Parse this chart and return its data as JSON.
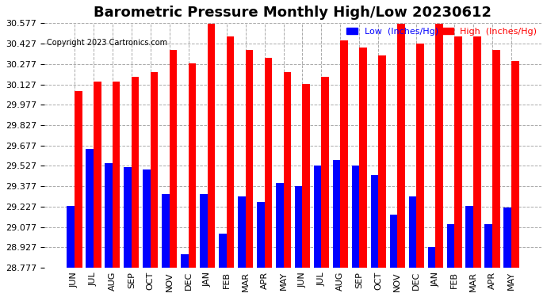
{
  "title": "Barometric Pressure Monthly High/Low 20230612",
  "copyright": "Copyright 2023 Cartronics.com",
  "legend_low": "Low  (Inches/Hg)",
  "legend_high": "High  (Inches/Hg)",
  "months": [
    "JUN",
    "JUL",
    "AUG",
    "SEP",
    "OCT",
    "NOV",
    "DEC",
    "JAN",
    "FEB",
    "MAR",
    "APR",
    "MAY",
    "JUN",
    "JUL",
    "AUG",
    "SEP",
    "OCT",
    "NOV",
    "DEC",
    "JAN",
    "FEB",
    "MAR",
    "APR",
    "MAY"
  ],
  "high_values": [
    30.08,
    30.15,
    30.15,
    30.18,
    30.22,
    30.38,
    30.28,
    30.57,
    30.48,
    30.38,
    30.32,
    30.22,
    30.13,
    30.18,
    30.45,
    30.4,
    30.34,
    30.57,
    30.43,
    30.57,
    30.48,
    30.48,
    30.38,
    30.3
  ],
  "low_values": [
    29.23,
    29.65,
    29.55,
    29.52,
    29.5,
    29.32,
    28.88,
    29.32,
    29.03,
    29.3,
    29.26,
    29.4,
    29.38,
    29.53,
    29.57,
    29.53,
    29.46,
    29.17,
    29.3,
    28.93,
    29.1,
    29.23,
    29.1,
    29.22
  ],
  "ylim_min": 28.777,
  "ylim_max": 30.577,
  "yticks": [
    28.777,
    28.927,
    29.077,
    29.227,
    29.377,
    29.527,
    29.677,
    29.827,
    29.977,
    30.127,
    30.277,
    30.427,
    30.577
  ],
  "bar_color_high": "#ff0000",
  "bar_color_low": "#0000ff",
  "background_color": "#ffffff",
  "grid_color": "#aaaaaa",
  "title_fontsize": 13,
  "axis_fontsize": 8,
  "copyright_fontsize": 7
}
